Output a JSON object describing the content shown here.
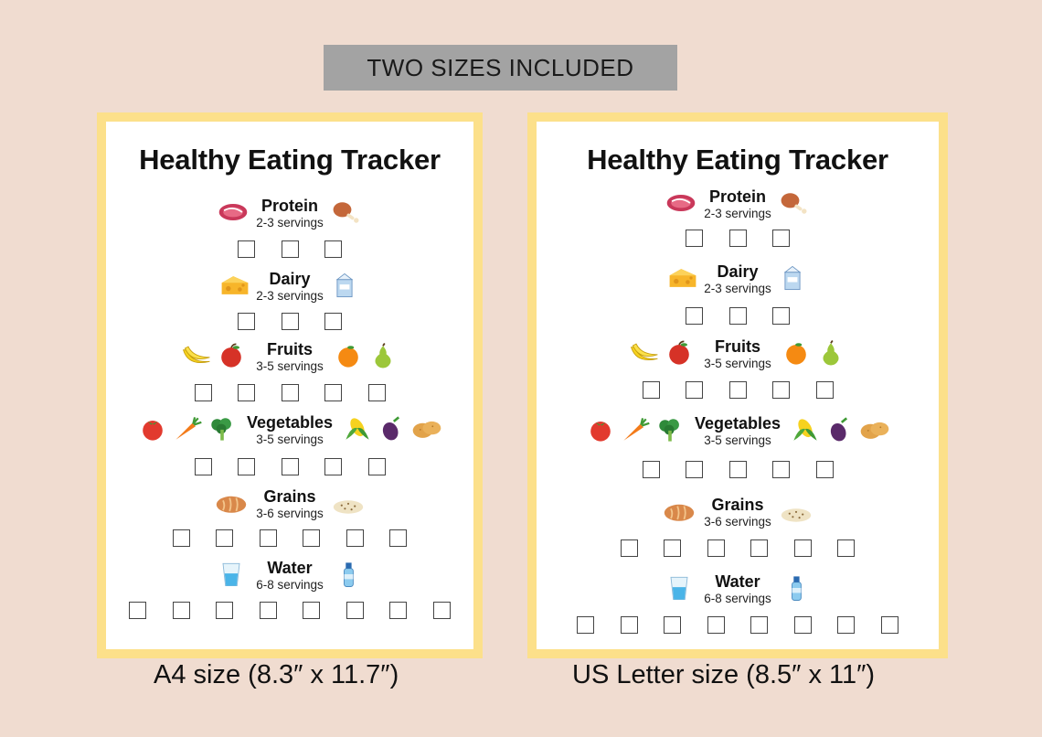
{
  "banner": {
    "text": "TWO SIZES INCLUDED"
  },
  "sheets": [
    {
      "id": "a4",
      "caption": "A4 size (8.3″ x 11.7″)",
      "title": "Healthy Eating Tracker",
      "categories": [
        {
          "name": "Protein",
          "servings": "2-3 servings",
          "boxes": 3,
          "icons_left": [
            "steak-icon"
          ],
          "icons_right": [
            "chicken-leg-icon"
          ]
        },
        {
          "name": "Dairy",
          "servings": "2-3 servings",
          "boxes": 3,
          "icons_left": [
            "cheese-icon"
          ],
          "icons_right": [
            "milk-carton-icon"
          ]
        },
        {
          "name": "Fruits",
          "servings": "3-5 servings",
          "boxes": 5,
          "icons_left": [
            "banana-icon",
            "apple-icon"
          ],
          "icons_right": [
            "orange-icon",
            "pear-icon"
          ]
        },
        {
          "name": "Vegetables",
          "servings": "3-5 servings",
          "boxes": 5,
          "icons_left": [
            "tomato-icon",
            "carrot-icon",
            "broccoli-icon"
          ],
          "icons_right": [
            "corn-icon",
            "eggplant-icon",
            "potato-icon"
          ]
        },
        {
          "name": "Grains",
          "servings": "3-6 servings",
          "boxes": 6,
          "icons_left": [
            "bread-icon"
          ],
          "icons_right": [
            "rice-icon"
          ]
        },
        {
          "name": "Water",
          "servings": "6-8 servings",
          "boxes": 8,
          "icons_left": [
            "water-glass-icon"
          ],
          "icons_right": [
            "water-bottle-icon"
          ]
        }
      ]
    },
    {
      "id": "letter",
      "caption": "US Letter size (8.5″ x 11″)",
      "title": "Healthy Eating Tracker",
      "categories": [
        {
          "name": "Protein",
          "servings": "2-3 servings",
          "boxes": 3,
          "icons_left": [
            "steak-icon"
          ],
          "icons_right": [
            "chicken-leg-icon"
          ]
        },
        {
          "name": "Dairy",
          "servings": "2-3 servings",
          "boxes": 3,
          "icons_left": [
            "cheese-icon"
          ],
          "icons_right": [
            "milk-carton-icon"
          ]
        },
        {
          "name": "Fruits",
          "servings": "3-5 servings",
          "boxes": 5,
          "icons_left": [
            "banana-icon",
            "apple-icon"
          ],
          "icons_right": [
            "orange-icon",
            "pear-icon"
          ]
        },
        {
          "name": "Vegetables",
          "servings": "3-5 servings",
          "boxes": 5,
          "icons_left": [
            "tomato-icon",
            "carrot-icon",
            "broccoli-icon"
          ],
          "icons_right": [
            "corn-icon",
            "eggplant-icon",
            "potato-icon"
          ]
        },
        {
          "name": "Grains",
          "servings": "3-6 servings",
          "boxes": 6,
          "icons_left": [
            "bread-icon"
          ],
          "icons_right": [
            "rice-icon"
          ]
        },
        {
          "name": "Water",
          "servings": "6-8 servings",
          "boxes": 8,
          "icons_left": [
            "water-glass-icon"
          ],
          "icons_right": [
            "water-bottle-icon"
          ]
        }
      ]
    }
  ],
  "colors": {
    "background": "#f0dcd0",
    "frame": "#fce08a",
    "banner": "#a3a3a3"
  }
}
